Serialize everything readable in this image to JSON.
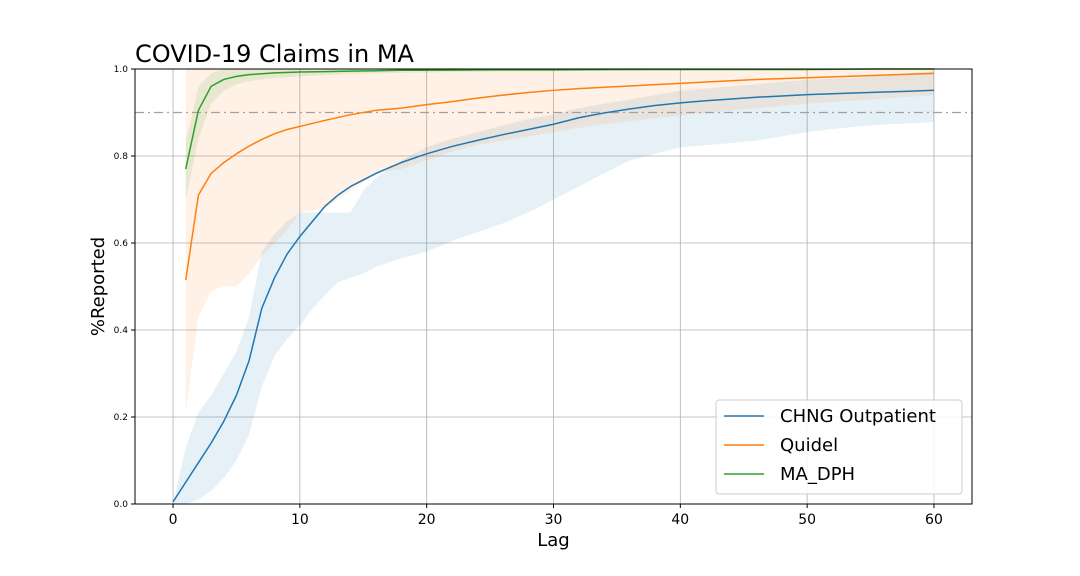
{
  "chart_data": {
    "type": "line",
    "title": "COVID-19 Claims in MA",
    "xlabel": "Lag",
    "ylabel": "%Reported",
    "xlim": [
      -3,
      63
    ],
    "ylim": [
      0.0,
      1.0
    ],
    "xticks": [
      0,
      10,
      20,
      30,
      40,
      50,
      60
    ],
    "xtick_labels": [
      "0",
      "10",
      "20",
      "30",
      "40",
      "50",
      "60"
    ],
    "yticks": [
      0.0,
      0.2,
      0.4,
      0.6,
      0.8,
      1.0
    ],
    "ytick_labels": [
      "0.0",
      "0.2",
      "0.4",
      "0.6",
      "0.8",
      "1.0"
    ],
    "grid": true,
    "reference_line": {
      "y": 0.9,
      "style": "dash-dot",
      "color": "#a0a0a0"
    },
    "legend_position": "lower-right",
    "series": [
      {
        "name": "CHNG Outpatient",
        "color": "#1f77b4",
        "x": [
          0,
          1,
          2,
          3,
          4,
          5,
          6,
          7,
          8,
          9,
          10,
          11,
          12,
          13,
          14,
          15,
          16,
          18,
          20,
          22,
          24,
          26,
          28,
          30,
          32,
          34,
          36,
          38,
          40,
          42,
          44,
          46,
          48,
          50,
          52,
          54,
          56,
          58,
          60
        ],
        "y": [
          0.005,
          0.05,
          0.095,
          0.14,
          0.19,
          0.25,
          0.33,
          0.45,
          0.52,
          0.575,
          0.615,
          0.65,
          0.685,
          0.71,
          0.73,
          0.745,
          0.76,
          0.785,
          0.805,
          0.822,
          0.836,
          0.849,
          0.861,
          0.873,
          0.888,
          0.899,
          0.908,
          0.916,
          0.922,
          0.927,
          0.931,
          0.935,
          0.938,
          0.941,
          0.943,
          0.945,
          0.947,
          0.949,
          0.951
        ],
        "lower": [
          0.0,
          0.0,
          0.01,
          0.03,
          0.06,
          0.1,
          0.16,
          0.27,
          0.34,
          0.38,
          0.41,
          0.45,
          0.48,
          0.51,
          0.52,
          0.53,
          0.545,
          0.565,
          0.58,
          0.605,
          0.625,
          0.645,
          0.67,
          0.7,
          0.73,
          0.76,
          0.79,
          0.805,
          0.82,
          0.825,
          0.83,
          0.835,
          0.845,
          0.855,
          0.862,
          0.868,
          0.872,
          0.875,
          0.878
        ],
        "upper": [
          0.0,
          0.13,
          0.21,
          0.25,
          0.3,
          0.35,
          0.43,
          0.58,
          0.62,
          0.65,
          0.67,
          0.67,
          0.67,
          0.67,
          0.67,
          0.72,
          0.75,
          0.79,
          0.82,
          0.84,
          0.855,
          0.87,
          0.885,
          0.895,
          0.91,
          0.92,
          0.93,
          0.94,
          0.95,
          0.955,
          0.96,
          0.965,
          0.97,
          0.975,
          0.978,
          0.98,
          0.985,
          0.99,
          0.995
        ]
      },
      {
        "name": "Quidel",
        "color": "#ff7f0e",
        "x": [
          1,
          2,
          3,
          4,
          5,
          6,
          7,
          8,
          9,
          10,
          12,
          14,
          16,
          18,
          20,
          22,
          24,
          26,
          28,
          30,
          32,
          34,
          36,
          38,
          40,
          42,
          44,
          46,
          48,
          50,
          52,
          54,
          56,
          58,
          60
        ],
        "y": [
          0.515,
          0.71,
          0.76,
          0.785,
          0.805,
          0.823,
          0.838,
          0.851,
          0.861,
          0.868,
          0.882,
          0.895,
          0.905,
          0.91,
          0.918,
          0.925,
          0.933,
          0.94,
          0.946,
          0.951,
          0.955,
          0.958,
          0.961,
          0.964,
          0.967,
          0.97,
          0.973,
          0.976,
          0.978,
          0.98,
          0.982,
          0.984,
          0.986,
          0.988,
          0.99
        ],
        "lower": [
          0.21,
          0.43,
          0.49,
          0.5,
          0.5,
          0.53,
          0.57,
          0.6,
          0.63,
          0.67,
          0.68,
          0.72,
          0.76,
          0.77,
          0.79,
          0.81,
          0.825,
          0.835,
          0.845,
          0.855,
          0.865,
          0.873,
          0.88,
          0.887,
          0.893,
          0.899,
          0.905,
          0.91,
          0.915,
          0.92,
          0.924,
          0.928,
          0.932,
          0.936,
          0.94
        ],
        "upper": [
          1.0,
          1.0,
          1.0,
          1.0,
          1.0,
          1.0,
          1.0,
          1.0,
          1.0,
          1.0,
          1.0,
          1.0,
          1.0,
          1.0,
          1.0,
          1.0,
          1.0,
          1.0,
          1.0,
          1.0,
          1.0,
          1.0,
          1.0,
          1.0,
          1.0,
          1.0,
          1.0,
          1.0,
          1.0,
          1.0,
          1.0,
          1.0,
          1.0,
          1.0,
          1.0
        ]
      },
      {
        "name": "MA_DPH",
        "color": "#2ca02c",
        "x": [
          1,
          2,
          3,
          4,
          5,
          6,
          7,
          8,
          10,
          12,
          14,
          16,
          18,
          20,
          25,
          30,
          35,
          40,
          45,
          50,
          55,
          60
        ],
        "y": [
          0.77,
          0.905,
          0.96,
          0.976,
          0.983,
          0.987,
          0.989,
          0.991,
          0.993,
          0.994,
          0.995,
          0.996,
          0.997,
          0.997,
          0.998,
          0.998,
          0.999,
          0.999,
          0.999,
          0.999,
          1.0,
          1.0
        ],
        "lower": [
          0.7,
          0.84,
          0.92,
          0.95,
          0.965,
          0.972,
          0.976,
          0.979,
          0.983,
          0.986,
          0.988,
          0.99,
          0.991,
          0.992,
          0.994,
          0.995,
          0.996,
          0.997,
          0.997,
          0.998,
          0.998,
          0.999
        ],
        "upper": [
          0.83,
          0.96,
          0.99,
          1.0,
          1.0,
          1.0,
          1.0,
          1.0,
          1.0,
          1.0,
          1.0,
          1.0,
          1.0,
          1.0,
          1.0,
          1.0,
          1.0,
          1.0,
          1.0,
          1.0,
          1.0,
          1.0
        ]
      }
    ]
  }
}
